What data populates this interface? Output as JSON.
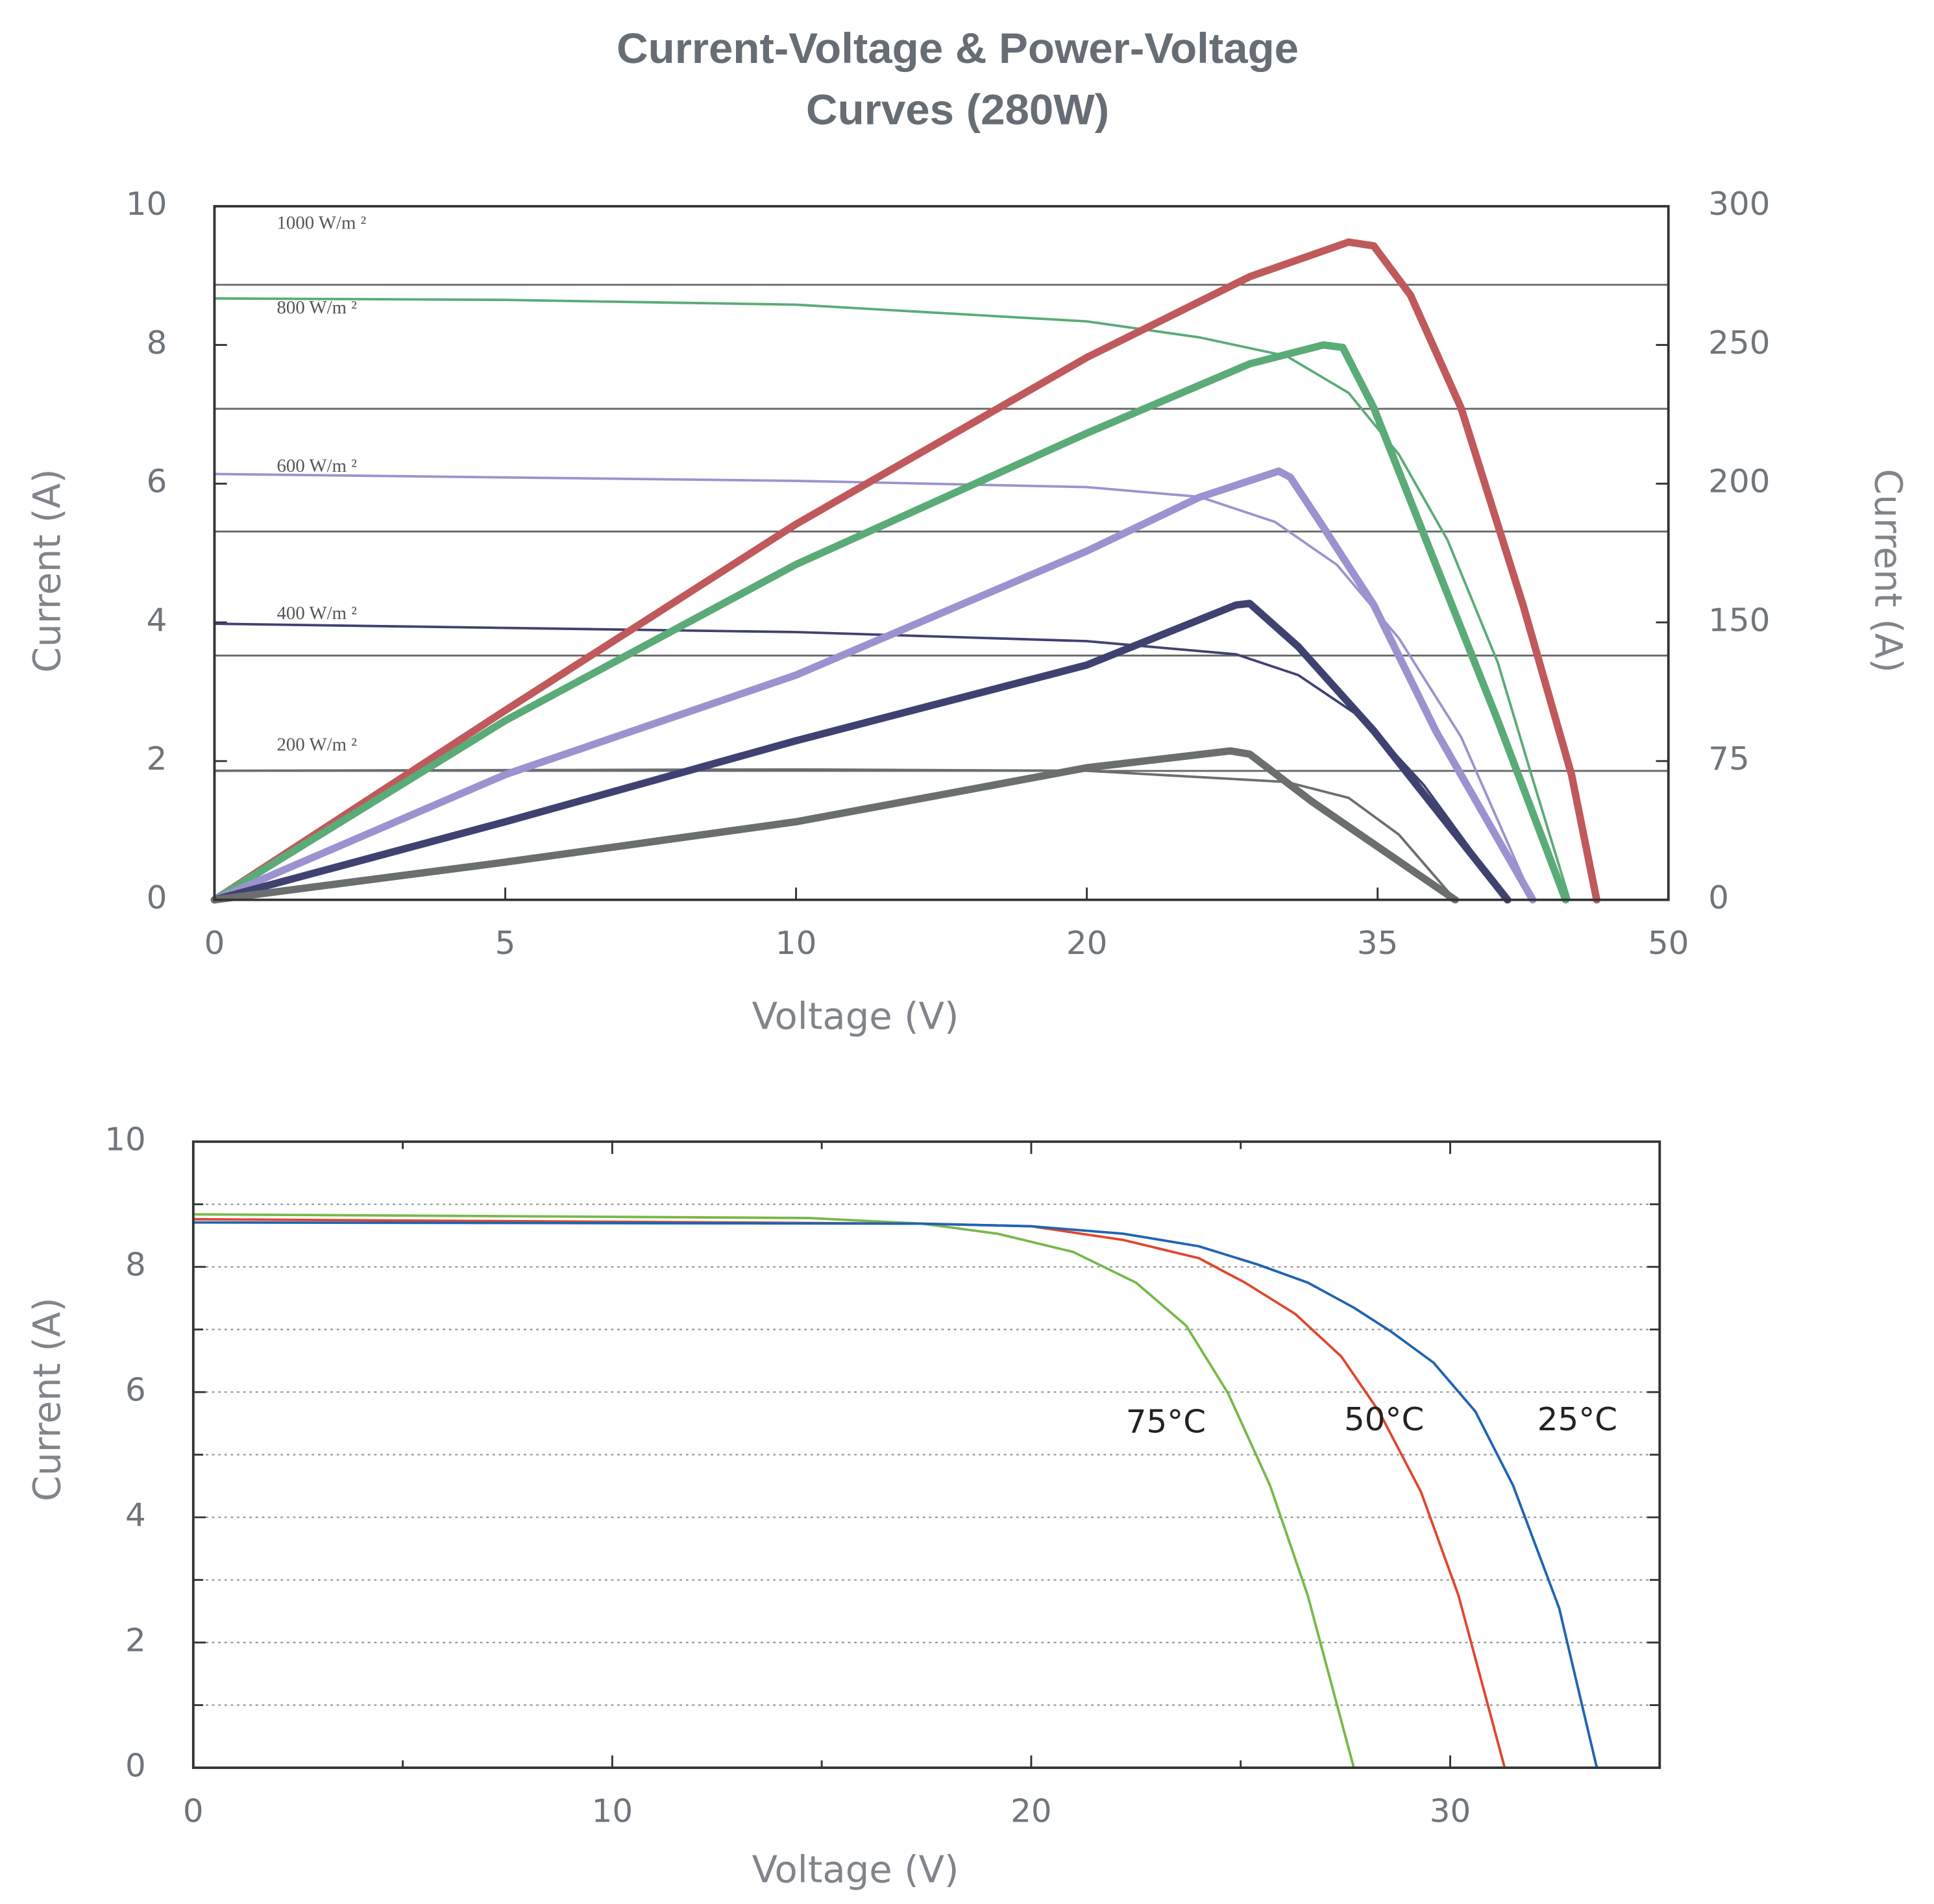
{
  "chart_data": [
    {
      "type": "line",
      "title": [
        "Current-Voltage & Power-Voltage",
        "Curves (280W)"
      ],
      "xlabel": "Voltage (V)",
      "ylabel": "Current (A)",
      "y2label": "Current (A)",
      "x_scale": "tick-spaced",
      "y2_scale": "tick-spaced",
      "xlim": [
        0,
        50
      ],
      "xticks": [
        0,
        5,
        10,
        20,
        35,
        50
      ],
      "ylim": [
        0,
        10
      ],
      "yticks": [
        0,
        2,
        4,
        6,
        8,
        10
      ],
      "y2lim": [
        0,
        300
      ],
      "y2ticks": [
        0,
        75,
        150,
        200,
        250,
        300
      ],
      "annotations": [
        "1000 W/m ²",
        "800 W/m ²",
        "600 W/m ²",
        "400 W/m ²",
        "200 W/m ²"
      ],
      "series": [
        {
          "color": "#5aab78",
          "line_width": 2,
          "x": [
            0,
            5,
            10,
            20,
            25.8,
            30.3,
            33.5,
            36.1,
            38.6,
            41.2,
            43.1,
            44.9
          ],
          "values": [
            8.67,
            8.65,
            8.58,
            8.34,
            8.11,
            7.84,
            7.31,
            6.42,
            5.19,
            3.42,
            1.65,
            0
          ]
        },
        {
          "color": "#9b93cf",
          "line_width": 2,
          "x": [
            0,
            10,
            20,
            25.8,
            29.7,
            32.9,
            36.1,
            39.3,
            43.0
          ],
          "values": [
            6.14,
            6.04,
            5.95,
            5.81,
            5.45,
            4.83,
            3.77,
            2.35,
            0
          ]
        },
        {
          "color": "#3f4270",
          "line_width": 2,
          "x": [
            0,
            10,
            20,
            27.7,
            30.9,
            34.2,
            37.4,
            41.7
          ],
          "values": [
            3.98,
            3.86,
            3.73,
            3.54,
            3.24,
            2.62,
            1.65,
            0
          ]
        },
        {
          "color": "#6b6e6e",
          "line_width": 2,
          "x": [
            0,
            10,
            20,
            30.3,
            33.5,
            36.1,
            39.0
          ],
          "values": [
            1.86,
            1.88,
            1.86,
            1.7,
            1.47,
            0.94,
            0
          ]
        },
        {
          "color": "#c0595b",
          "line_width": 6,
          "axis": "y2",
          "x": [
            0,
            5,
            10,
            20,
            28.4,
            33.5,
            34.8,
            36.7,
            39.3,
            42.5,
            45.0,
            46.3
          ],
          "values": [
            0,
            102.4,
            185.4,
            245.5,
            274.6,
            287.1,
            285.7,
            267.9,
            227.3,
            156.3,
            67.7,
            0
          ]
        },
        {
          "color": "#5aab78",
          "line_width": 6,
          "axis": "y2",
          "x": [
            0,
            5,
            10,
            20,
            28.4,
            32.2,
            33.2,
            34.8,
            38.0,
            41.2,
            44.7
          ],
          "values": [
            0,
            96.9,
            170.9,
            218.2,
            243.2,
            250,
            249.1,
            227.3,
            170.9,
            96.9,
            0
          ]
        },
        {
          "color": "#9b93cf",
          "line_width": 6,
          "axis": "y2",
          "x": [
            0,
            5,
            10,
            20,
            25.8,
            29.9,
            30.5,
            32.1,
            34.8,
            38.0,
            43.0
          ],
          "values": [
            0,
            67.7,
            121.5,
            175.7,
            195.1,
            204.5,
            202.3,
            185.4,
            156.3,
            91.4,
            0
          ]
        },
        {
          "color": "#3f4270",
          "line_width": 6,
          "axis": "y2",
          "x": [
            0,
            5,
            10,
            20,
            27.7,
            28.4,
            30.9,
            34.8,
            41.7
          ],
          "values": [
            0,
            42.2,
            86.0,
            127.0,
            156.3,
            156.8,
            136.9,
            91.4,
            0
          ]
        },
        {
          "color": "#6b6e6e",
          "line_width": 6,
          "axis": "y2",
          "x": [
            0,
            5,
            10,
            20,
            27.4,
            28.4,
            31.6,
            39.0
          ],
          "values": [
            0,
            20.4,
            42.2,
            71.4,
            80.5,
            78.8,
            53.2,
            0
          ]
        }
      ]
    },
    {
      "type": "line",
      "xlabel": "Voltage (V)",
      "ylabel": "Current (A)",
      "xlim": [
        0,
        35
      ],
      "xticks": [
        0,
        10,
        20,
        30
      ],
      "minor_xticks": [
        5,
        15,
        25
      ],
      "ylim": [
        0,
        10
      ],
      "yticks": [
        0,
        2,
        4,
        6,
        8,
        10
      ],
      "minor_yticks": [
        1,
        3,
        5,
        7,
        9
      ],
      "grid": "dotted",
      "series": [
        {
          "name": "75°C",
          "color": "#78b84a",
          "line_width": 2,
          "x": [
            0,
            14.7,
            17.4,
            19.2,
            21.0,
            22.5,
            23.7,
            24.7,
            25.7,
            26.6,
            27.7
          ],
          "values": [
            8.84,
            8.78,
            8.69,
            8.53,
            8.24,
            7.75,
            7.06,
            5.98,
            4.51,
            2.75,
            0
          ]
        },
        {
          "name": "50°C",
          "color": "#e0462e",
          "line_width": 2,
          "x": [
            0,
            17.4,
            20.0,
            22.2,
            24.0,
            25.1,
            26.3,
            27.4,
            28.3,
            29.3,
            30.2,
            31.3
          ],
          "values": [
            8.76,
            8.69,
            8.65,
            8.43,
            8.14,
            7.75,
            7.25,
            6.57,
            5.69,
            4.41,
            2.75,
            0
          ]
        },
        {
          "name": "25°C",
          "color": "#1f64b4",
          "line_width": 2,
          "x": [
            0,
            17.4,
            20.0,
            22.2,
            24.0,
            25.4,
            26.6,
            27.7,
            28.6,
            29.6,
            30.6,
            31.5,
            32.6,
            33.5
          ],
          "values": [
            8.71,
            8.69,
            8.65,
            8.53,
            8.33,
            8.04,
            7.75,
            7.35,
            6.96,
            6.47,
            5.69,
            4.51,
            2.55,
            0
          ]
        }
      ]
    }
  ]
}
